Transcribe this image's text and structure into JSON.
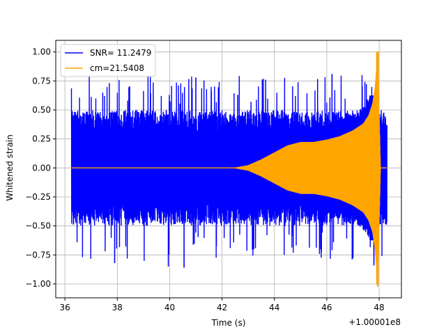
{
  "chart_data": {
    "type": "line",
    "title": "",
    "xlabel": "Time (s)",
    "ylabel": "Whitened strain",
    "x_offset_label": "+1.00001e8",
    "xlim": [
      35.65,
      48.85
    ],
    "ylim": [
      -1.12,
      1.1
    ],
    "xticks": [
      36,
      38,
      40,
      42,
      44,
      46,
      48
    ],
    "xtick_labels": [
      "36",
      "38",
      "40",
      "42",
      "44",
      "46",
      "48"
    ],
    "yticks": [
      -1.0,
      -0.75,
      -0.5,
      -0.25,
      0.0,
      0.25,
      0.5,
      0.75,
      1.0
    ],
    "ytick_labels": [
      "−1.00",
      "−0.75",
      "−0.50",
      "−0.25",
      "0.00",
      "0.25",
      "0.50",
      "0.75",
      "1.00"
    ],
    "grid": true,
    "legend_position": "top-left",
    "series": [
      {
        "name": "SNR= 11.2479",
        "color": "#0000ff",
        "x_range": [
          36.25,
          48.3
        ],
        "noise_envelope": {
          "typical": 0.45,
          "peak_max": 0.82,
          "peak_min": -0.86
        },
        "notable_peaks": [
          {
            "x": 37.9,
            "y": -0.82
          },
          {
            "x": 39.95,
            "y": -0.85
          },
          {
            "x": 40.55,
            "y": -0.86
          },
          {
            "x": 41.0,
            "y": 0.78
          },
          {
            "x": 42.6,
            "y": 0.63
          },
          {
            "x": 46.2,
            "y": 0.81
          },
          {
            "x": 47.8,
            "y": -0.84
          }
        ]
      },
      {
        "name": "cm=21.5408",
        "color": "#ffa500",
        "points": [
          [
            36.25,
            0.0
          ],
          [
            42.5,
            0.0
          ],
          [
            43.0,
            0.02
          ],
          [
            43.5,
            0.07
          ],
          [
            44.0,
            0.13
          ],
          [
            44.5,
            0.19
          ],
          [
            45.0,
            0.22
          ],
          [
            45.5,
            0.22
          ],
          [
            46.0,
            0.24
          ],
          [
            46.5,
            0.27
          ],
          [
            47.0,
            0.32
          ],
          [
            47.4,
            0.38
          ],
          [
            47.6,
            0.45
          ],
          [
            47.75,
            0.55
          ],
          [
            47.85,
            0.7
          ],
          [
            47.95,
            1.0
          ],
          [
            48.05,
            0.0
          ],
          [
            48.3,
            0.0
          ]
        ]
      }
    ]
  }
}
